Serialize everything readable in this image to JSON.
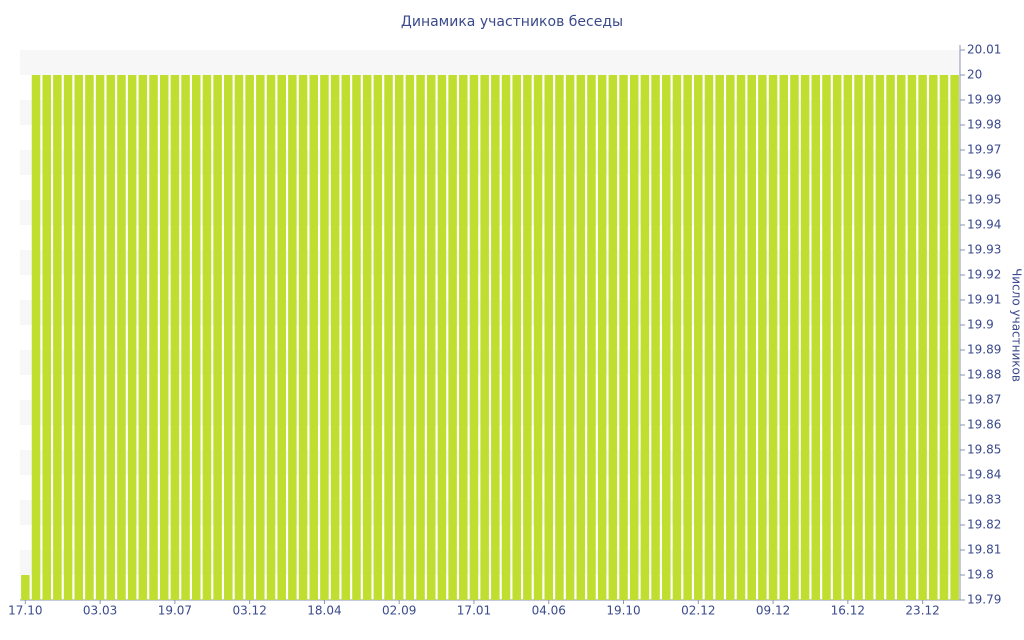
{
  "chart_data": {
    "type": "bar",
    "title": "Динамика участников беседы",
    "y_axis_label": "Число участников",
    "categories": [
      "17.10",
      null,
      null,
      null,
      null,
      null,
      null,
      "03.03",
      null,
      null,
      null,
      null,
      null,
      null,
      "19.07",
      null,
      null,
      null,
      null,
      null,
      null,
      "03.12",
      null,
      null,
      null,
      null,
      null,
      null,
      "18.04",
      null,
      null,
      null,
      null,
      null,
      null,
      "02.09",
      null,
      null,
      null,
      null,
      null,
      null,
      "17.01",
      null,
      null,
      null,
      null,
      null,
      null,
      "04.06",
      null,
      null,
      null,
      null,
      null,
      null,
      "19.10",
      null,
      null,
      null,
      null,
      null,
      null,
      "02.12",
      null,
      null,
      null,
      null,
      null,
      null,
      "09.12",
      null,
      null,
      null,
      null,
      null,
      null,
      "16.12",
      null,
      null,
      null,
      null,
      null,
      null,
      "23.12",
      null,
      null,
      null
    ],
    "values": [
      19.8,
      20,
      20,
      20,
      20,
      20,
      20,
      20,
      20,
      20,
      20,
      20,
      20,
      20,
      20,
      20,
      20,
      20,
      20,
      20,
      20,
      20,
      20,
      20,
      20,
      20,
      20,
      20,
      20,
      20,
      20,
      20,
      20,
      20,
      20,
      20,
      20,
      20,
      20,
      20,
      20,
      20,
      20,
      20,
      20,
      20,
      20,
      20,
      20,
      20,
      20,
      20,
      20,
      20,
      20,
      20,
      20,
      20,
      20,
      20,
      20,
      20,
      20,
      20,
      20,
      20,
      20,
      20,
      20,
      20,
      20,
      20,
      20,
      20,
      20,
      20,
      20,
      20,
      20,
      20,
      20,
      20,
      20,
      20,
      20,
      20,
      20,
      20
    ],
    "color": "#c0de30",
    "ylim": [
      19.79,
      20.01
    ],
    "yticks": [
      19.79,
      19.8,
      19.81,
      19.82,
      19.83,
      19.84,
      19.85,
      19.86,
      19.87,
      19.88,
      19.89,
      19.9,
      19.91,
      19.92,
      19.93,
      19.94,
      19.95,
      19.96,
      19.97,
      19.98,
      19.99,
      20,
      20.01
    ],
    "y_axis_side": "right"
  }
}
